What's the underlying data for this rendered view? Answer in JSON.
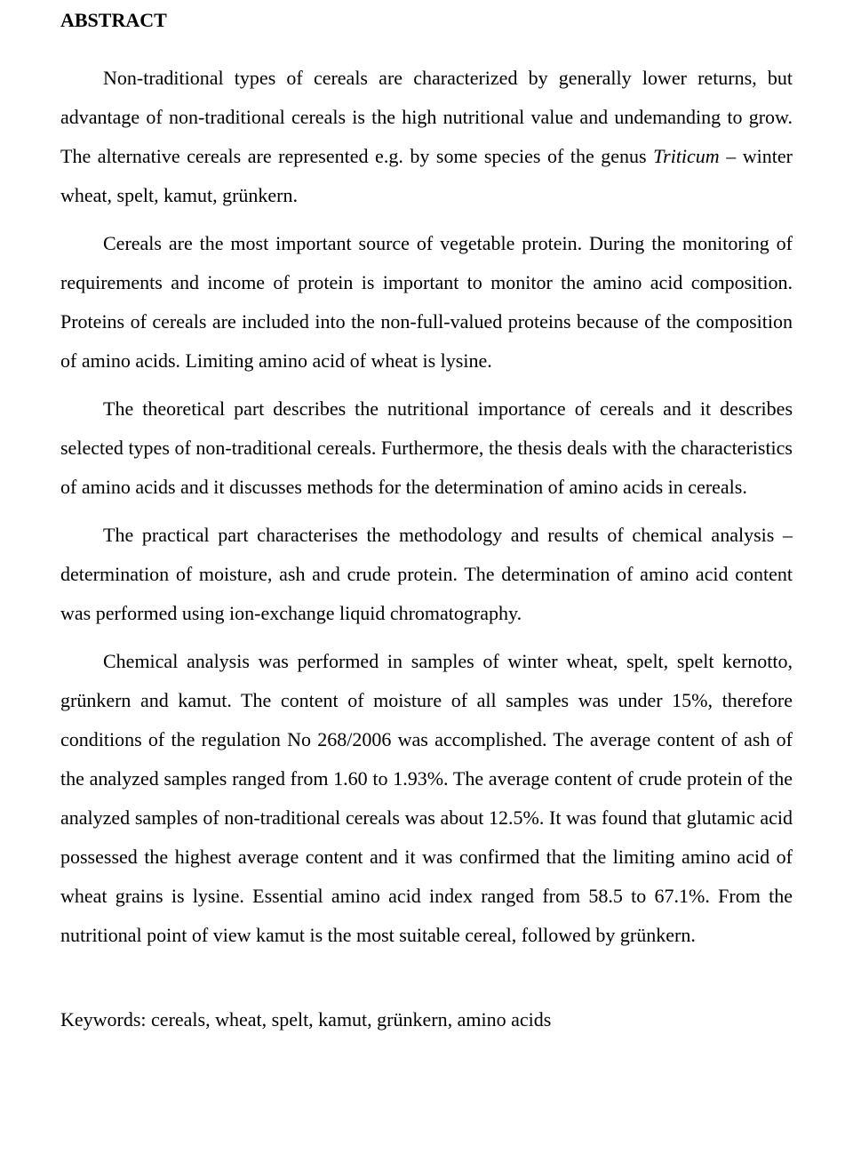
{
  "document": {
    "title": "ABSTRACT",
    "paragraphs": {
      "p1_pre": "Non-traditional types of cereals are characterized by generally lower returns, but advantage of non-traditional cereals is the high nutritional value and undemanding to grow. The alternative cereals are represented e.g. by some species of the genus ",
      "p1_italic": "Triticum",
      "p1_post": " – winter wheat, spelt, kamut, grünkern.",
      "p2": " Cereals are the most important source of vegetable protein. During the monitoring of requirements and income of protein is important to monitor the amino acid composition. Proteins of cereals are included into the non-full-valued proteins because of the composition of amino acids. Limiting amino acid of wheat is lysine.",
      "p3": "The theoretical part describes the nutritional importance of cereals and it describes selected types of non-traditional cereals. Furthermore, the thesis deals with the characteristics of amino acids and it discusses methods for the determination of amino acids in cereals.",
      "p4": "The practical part characterises the methodology and results of chemical analysis – determination of moisture, ash and crude protein. The determination of amino acid content was performed using ion-exchange liquid chromatography.",
      "p5": "Chemical analysis was performed in samples of winter wheat, spelt, spelt kernotto, grünkern and kamut. The content of moisture of all samples was under 15%, therefore conditions of the regulation No 268/2006 was accomplished. The average content of ash of the analyzed samples ranged from 1.60 to 1.93%. The average content of crude protein of the analyzed samples of non-traditional cereals was about 12.5%. It was found that glutamic acid possessed the highest average content and it was confirmed that the limiting amino acid of wheat grains is lysine. Essential amino acid index ranged from 58.5 to 67.1%. From the nutritional point of view kamut is the most suitable cereal, followed by grünkern."
    },
    "keywords": "Keywords: cereals, wheat, spelt, kamut, grünkern, amino acids"
  }
}
